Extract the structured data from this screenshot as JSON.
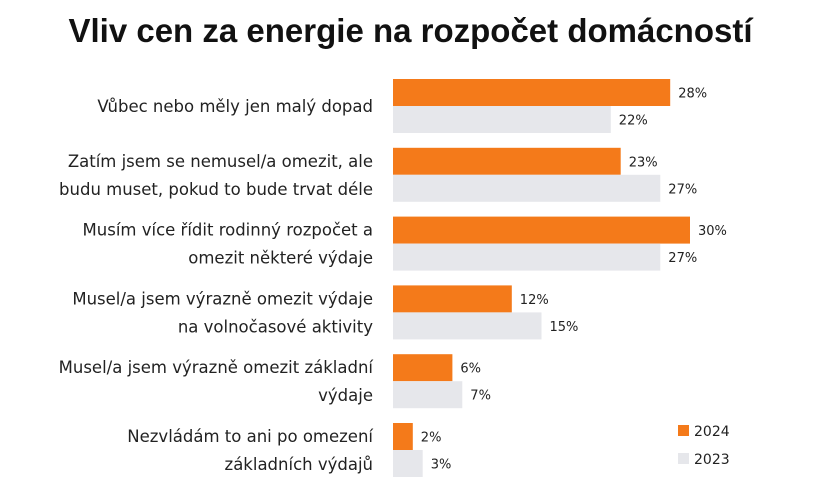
{
  "title": "Vliv cen za energie na rozpočet domácností",
  "colors": {
    "series_2024": "#f47a1a",
    "series_2023": "#e6e7eb"
  },
  "chart_data": {
    "type": "bar",
    "orientation": "horizontal",
    "title": "Vliv cen za energie na rozpočet domácností",
    "categories": [
      [
        "Vůbec nebo měly jen malý dopad"
      ],
      [
        "Zatím jsem se nemusel/a omezit, ale",
        "budu muset, pokud to bude trvat déle"
      ],
      [
        "Musím více řídit rodinný rozpočet a",
        "omezit některé výdaje"
      ],
      [
        "Musel/a jsem výrazně omezit výdaje",
        "na volnočasové aktivity"
      ],
      [
        "Musel/a jsem výrazně omezit základní",
        "výdaje"
      ],
      [
        "Nezvládám to ani po omezení",
        "základních výdajů"
      ]
    ],
    "series": [
      {
        "name": "2024",
        "values": [
          28,
          23,
          30,
          12,
          6,
          2
        ],
        "labels": [
          "28%",
          "23%",
          "30%",
          "12%",
          "6%",
          "2%"
        ]
      },
      {
        "name": "2023",
        "values": [
          22,
          27,
          27,
          15,
          7,
          3
        ],
        "labels": [
          "22%",
          "27%",
          "27%",
          "15%",
          "7%",
          "3%"
        ]
      }
    ],
    "unit": "%",
    "legend_position": "bottom-right",
    "grid": false
  }
}
